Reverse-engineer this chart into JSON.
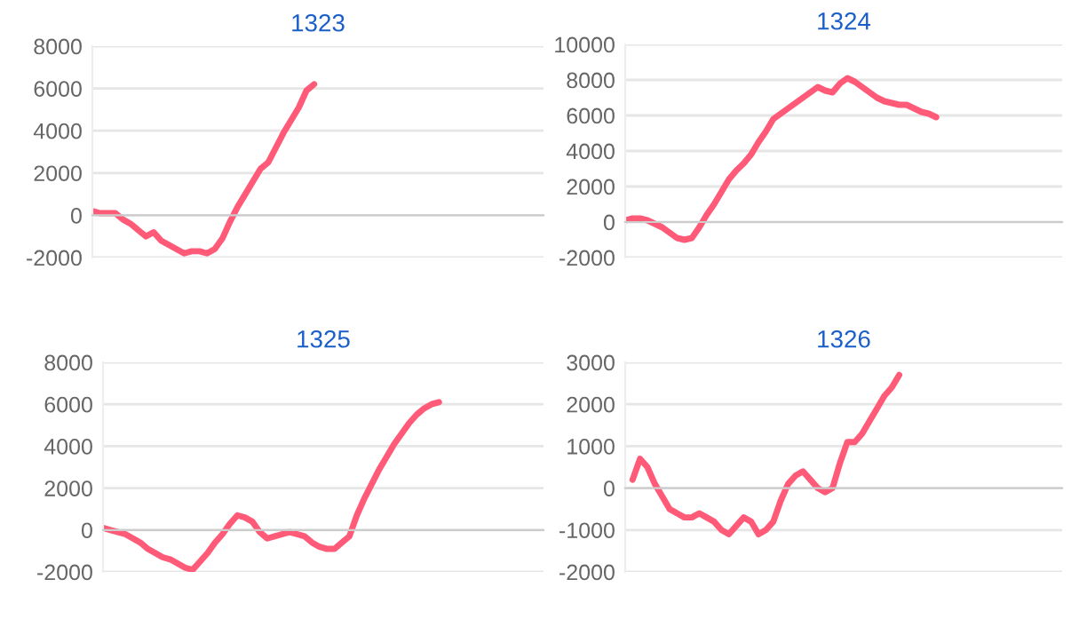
{
  "chart_data": [
    {
      "type": "line",
      "title": "1323",
      "categories": [
        null,
        null,
        null,
        null,
        null,
        null,
        null,
        null,
        null,
        null,
        null,
        null,
        null,
        null,
        null,
        null,
        null,
        null,
        null,
        null,
        null,
        null,
        null,
        null,
        null,
        null,
        null,
        null,
        null,
        null,
        null,
        null,
        null,
        null,
        null,
        null,
        null,
        null,
        null,
        null,
        null,
        null,
        null,
        null,
        null,
        null,
        null,
        null,
        null,
        null,
        null,
        null,
        null,
        null,
        null,
        null,
        null,
        null,
        null,
        null
      ],
      "series": [
        {
          "color": "#ff5a78",
          "values": [
            200,
            100,
            100,
            100,
            -200,
            -400,
            -700,
            -1000,
            -800,
            -1200,
            -1400,
            -1600,
            -1800,
            -1700,
            -1700,
            -1800,
            -1600,
            -1100,
            -300,
            400,
            1000,
            1600,
            2200,
            2500,
            3200,
            3900,
            4500,
            5100,
            5900,
            6200,
            null,
            null,
            null,
            null,
            null,
            null,
            null,
            null,
            null,
            null,
            null,
            null,
            null,
            null,
            null,
            null,
            null,
            null,
            null,
            null,
            null,
            null,
            null,
            null,
            null,
            null,
            null,
            null,
            null,
            null
          ]
        }
      ],
      "ylim": [
        -2000,
        8000
      ],
      "yticks": [
        -2000,
        0,
        2000,
        4000,
        6000,
        8000
      ],
      "grid": "y",
      "tick_labels": "y",
      "marker": "none",
      "line_style": "solid"
    },
    {
      "type": "line",
      "title": "1324",
      "categories": [
        null,
        null,
        null,
        null,
        null,
        null,
        null,
        null,
        null,
        null,
        null,
        null,
        null,
        null,
        null,
        null,
        null,
        null,
        null,
        null,
        null,
        null,
        null,
        null,
        null,
        null,
        null,
        null,
        null,
        null,
        null,
        null,
        null,
        null,
        null,
        null,
        null,
        null,
        null,
        null,
        null,
        null,
        null,
        null,
        null,
        null,
        null,
        null,
        null,
        null,
        null,
        null,
        null,
        null,
        null,
        null,
        null,
        null,
        null,
        null
      ],
      "series": [
        {
          "color": "#ff5a78",
          "values": [
            100,
            200,
            200,
            100,
            -100,
            -300,
            -600,
            -900,
            -1000,
            -900,
            -300,
            400,
            1000,
            1700,
            2400,
            2900,
            3300,
            3800,
            4500,
            5100,
            5800,
            6100,
            6400,
            6700,
            7000,
            7300,
            7600,
            7400,
            7300,
            7800,
            8100,
            7900,
            7600,
            7300,
            7000,
            6800,
            6700,
            6600,
            6600,
            6400,
            6200,
            6100,
            5900,
            null,
            null,
            null,
            null,
            null,
            null,
            null,
            null,
            null,
            null,
            null,
            null,
            null,
            null,
            null,
            null,
            null
          ]
        }
      ],
      "ylim": [
        -2000,
        10000
      ],
      "yticks": [
        -2000,
        0,
        2000,
        4000,
        6000,
        8000,
        10000
      ],
      "grid": "y",
      "tick_labels": "y",
      "marker": "none",
      "line_style": "solid"
    },
    {
      "type": "line",
      "title": "1325",
      "categories": [
        null,
        null,
        null,
        null,
        null,
        null,
        null,
        null,
        null,
        null,
        null,
        null,
        null,
        null,
        null,
        null,
        null,
        null,
        null,
        null,
        null,
        null,
        null,
        null,
        null,
        null,
        null,
        null,
        null,
        null,
        null,
        null,
        null,
        null,
        null,
        null,
        null,
        null,
        null,
        null,
        null,
        null,
        null,
        null,
        null,
        null,
        null,
        null,
        null,
        null,
        null,
        null,
        null,
        null,
        null,
        null,
        null,
        null,
        null,
        null
      ],
      "series": [
        {
          "color": "#ff5a78",
          "values": [
            100,
            0,
            -100,
            -200,
            -400,
            -600,
            -900,
            -1100,
            -1300,
            -1400,
            -1600,
            -1800,
            -1900,
            -1500,
            -1100,
            -600,
            -200,
            300,
            700,
            600,
            400,
            -100,
            -400,
            -300,
            -200,
            -100,
            -200,
            -300,
            -600,
            -800,
            -900,
            -900,
            -600,
            -300,
            700,
            1500,
            2200,
            2900,
            3500,
            4100,
            4600,
            5100,
            5500,
            5800,
            6000,
            6100,
            null,
            null,
            null,
            null,
            null,
            null,
            null,
            null,
            null,
            null,
            null,
            null,
            null,
            null
          ]
        }
      ],
      "ylim": [
        -2000,
        8000
      ],
      "yticks": [
        -2000,
        0,
        2000,
        4000,
        6000,
        8000
      ],
      "grid": "y",
      "tick_labels": "y",
      "marker": "none",
      "line_style": "solid"
    },
    {
      "type": "line",
      "title": "1326",
      "categories": [
        null,
        null,
        null,
        null,
        null,
        null,
        null,
        null,
        null,
        null,
        null,
        null,
        null,
        null,
        null,
        null,
        null,
        null,
        null,
        null,
        null,
        null,
        null,
        null,
        null,
        null,
        null,
        null,
        null,
        null,
        null,
        null,
        null,
        null,
        null,
        null,
        null,
        null,
        null,
        null,
        null,
        null,
        null,
        null,
        null,
        null,
        null,
        null,
        null,
        null,
        null,
        null,
        null,
        null,
        null,
        null,
        null,
        null,
        null,
        null
      ],
      "series": [
        {
          "color": "#ff5a78",
          "values": [
            null,
            200,
            700,
            500,
            100,
            -200,
            -500,
            -600,
            -700,
            -700,
            -600,
            -700,
            -800,
            -1000,
            -1100,
            -900,
            -700,
            -800,
            -1100,
            -1000,
            -800,
            -300,
            100,
            300,
            400,
            200,
            0,
            -100,
            0,
            600,
            1100,
            1100,
            1300,
            1600,
            1900,
            2200,
            2400,
            2700,
            null,
            null,
            null,
            null,
            null,
            null,
            null,
            null,
            null,
            null,
            null,
            null,
            null,
            null,
            null,
            null,
            null,
            null,
            null,
            null,
            null,
            null
          ]
        }
      ],
      "ylim": [
        -2000,
        3000
      ],
      "yticks": [
        -2000,
        -1000,
        0,
        1000,
        2000,
        3000
      ],
      "grid": "y",
      "tick_labels": "y",
      "marker": "none",
      "line_style": "solid"
    }
  ]
}
